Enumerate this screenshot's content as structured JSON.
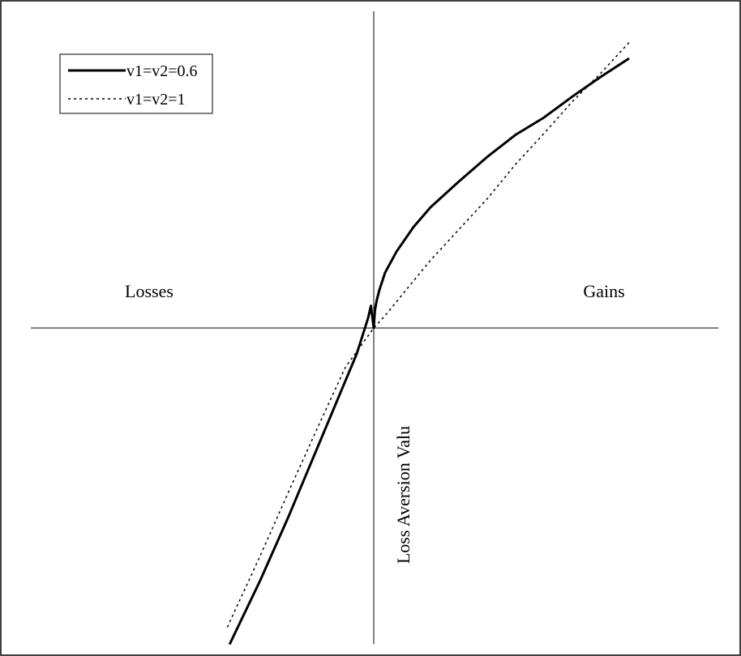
{
  "chart_data": {
    "type": "line",
    "title": "",
    "xlabel": "",
    "ylabel": "Loss Aversion Valu",
    "quadrant_labels": {
      "left": "Losses",
      "right": "Gains"
    },
    "grid": false,
    "legend": {
      "placement": "top-left",
      "boxed": true
    },
    "x_range": [
      -2.7,
      4.65
    ],
    "y_range": [
      -2.57,
      2.5
    ],
    "series": [
      {
        "name": "v1=v2=0.6",
        "style": "solid",
        "color": "#000000",
        "points": [
          [
            -2.54,
            -2.57
          ],
          [
            -2.0,
            -2.05
          ],
          [
            -1.5,
            -1.53
          ],
          [
            -1.0,
            -0.98
          ],
          [
            -0.6,
            -0.54
          ],
          [
            -0.3,
            -0.21
          ],
          [
            -0.1,
            0.08
          ],
          [
            -0.05,
            0.18
          ],
          [
            0.0,
            0.0
          ],
          [
            0.02,
            0.14
          ],
          [
            0.05,
            0.22
          ],
          [
            0.1,
            0.31
          ],
          [
            0.2,
            0.45
          ],
          [
            0.4,
            0.62
          ],
          [
            0.7,
            0.82
          ],
          [
            1.0,
            0.98
          ],
          [
            1.5,
            1.19
          ],
          [
            2.0,
            1.39
          ],
          [
            2.5,
            1.57
          ],
          [
            3.0,
            1.71
          ],
          [
            3.5,
            1.88
          ],
          [
            4.0,
            2.04
          ],
          [
            4.5,
            2.19
          ]
        ]
      },
      {
        "name": "v1=v2=1",
        "style": "dotted",
        "color": "#000000",
        "points": [
          [
            -2.58,
            -2.43
          ],
          [
            -2.0,
            -1.85
          ],
          [
            -1.5,
            -1.33
          ],
          [
            -1.0,
            -0.82
          ],
          [
            -0.5,
            -0.32
          ],
          [
            0.0,
            0.0
          ],
          [
            0.2,
            0.1
          ],
          [
            0.5,
            0.27
          ],
          [
            1.0,
            0.55
          ],
          [
            1.5,
            0.8
          ],
          [
            2.0,
            1.05
          ],
          [
            2.5,
            1.33
          ],
          [
            3.0,
            1.58
          ],
          [
            3.5,
            1.84
          ],
          [
            4.0,
            2.07
          ],
          [
            4.5,
            2.32
          ]
        ]
      }
    ]
  }
}
